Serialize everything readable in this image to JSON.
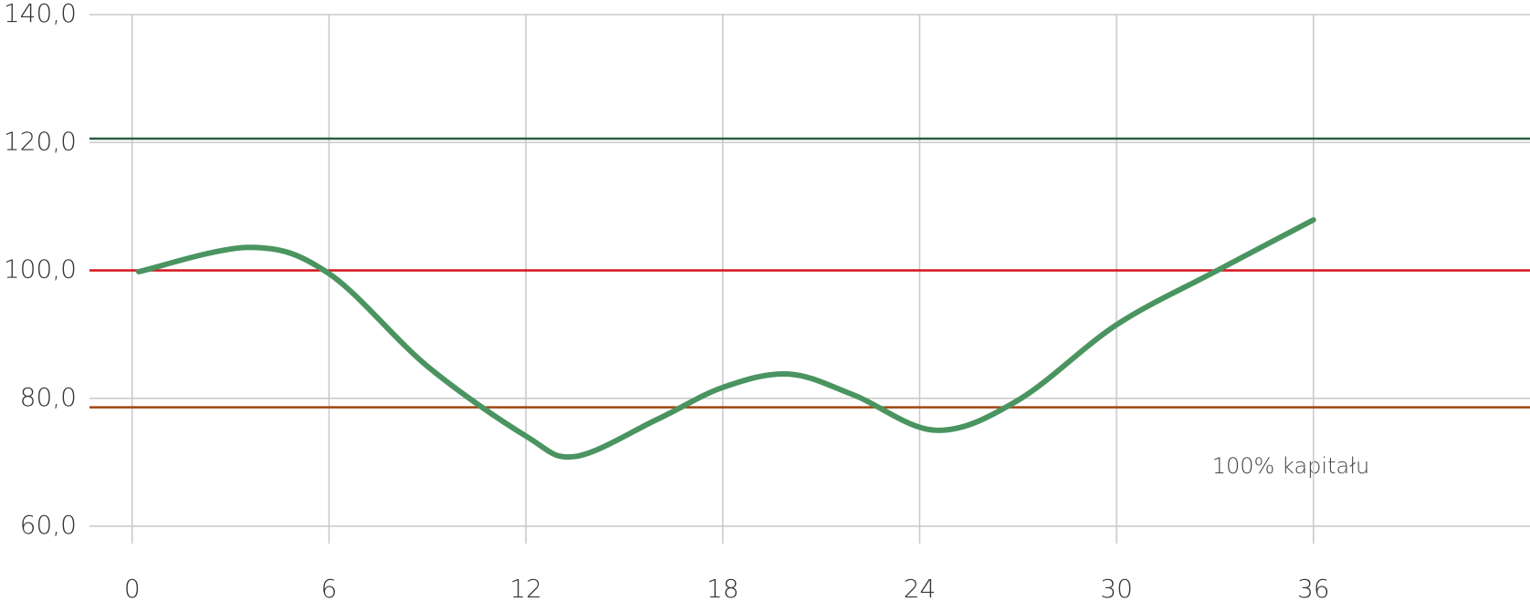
{
  "chart_data": {
    "type": "line",
    "x": [
      0.2,
      3.6,
      6,
      9,
      12,
      13.5,
      16,
      18,
      20,
      22,
      24.5,
      27,
      30,
      33,
      36
    ],
    "series": [
      {
        "color": "#4a9460",
        "values": [
          99.8,
          103.6,
          99.5,
          85,
          74.1,
          70.9,
          76.7,
          81.7,
          83.8,
          80.5,
          75.0,
          79.7,
          91.5,
          99.8,
          107.9
        ]
      }
    ],
    "reference_lines": [
      {
        "value": 120.6,
        "color": "#2d5e3f"
      },
      {
        "value": 100,
        "color": "#d6141c"
      },
      {
        "value": 78.6,
        "color": "#a0450f"
      }
    ],
    "annotation": "100% kapitału",
    "xlim": [
      -1.3,
      42.6
    ],
    "xticks": [
      0,
      6,
      12,
      18,
      24,
      30,
      36
    ],
    "ylim": [
      60,
      140
    ],
    "yticks": [
      {
        "value": 60,
        "label": "60,0"
      },
      {
        "value": 80,
        "label": "80,0"
      },
      {
        "value": 100,
        "label": "100,0"
      },
      {
        "value": 120,
        "label": "120,0"
      },
      {
        "value": 140,
        "label": "140,0"
      }
    ],
    "grid": true
  }
}
